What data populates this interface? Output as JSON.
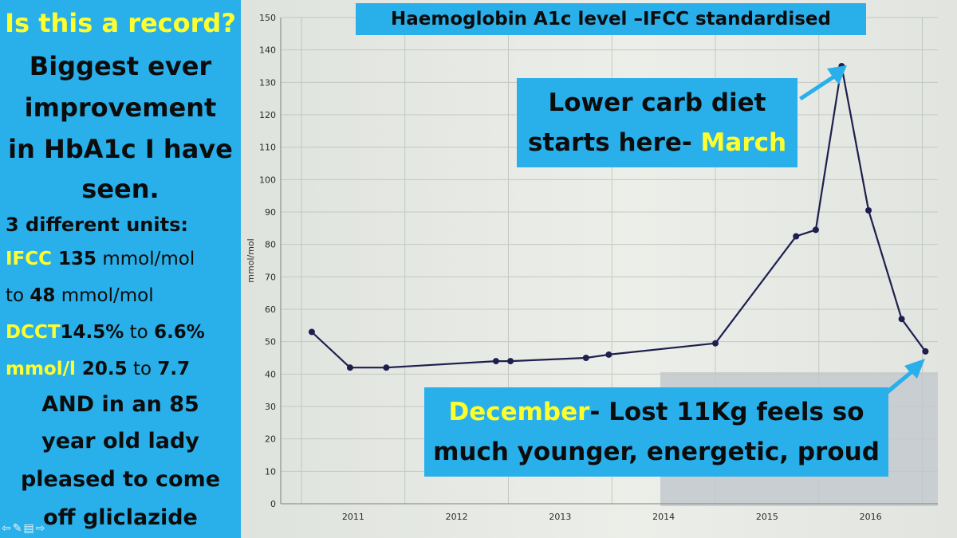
{
  "left_panel": {
    "question": "Is this a record?",
    "headline_lines": [
      "Biggest ever",
      "improvement",
      "in HbA1c I have",
      "seen."
    ],
    "units_heading": "3 different units:",
    "ifcc": {
      "label": "IFCC",
      "from_value": "135",
      "from_unit": " mmol/mol",
      "to_word": "to ",
      "to_value": "48",
      "to_unit": " mmol/mol"
    },
    "dcct": {
      "label": "DCCT",
      "from_value": "14.5%",
      "to_word": " to ",
      "to_value": "6.6%"
    },
    "mmol_l": {
      "label": "mmol/l",
      "from_value": " 20.5",
      "to_word": " to ",
      "to_value": "7.7"
    },
    "closing_lines": [
      "AND in an 85",
      "year old lady",
      "pleased to come",
      "off gliclazide"
    ]
  },
  "callouts": {
    "diet": {
      "line1": "Lower carb diet",
      "line2_prefix": "starts here- ",
      "line2_highlight": "March"
    },
    "december": {
      "highlight": "December",
      "line1_rest": "- Lost 11Kg feels so",
      "line2": "much younger, energetic, proud"
    }
  },
  "nav_icons": [
    "back-arrow-icon",
    "pen-icon",
    "menu-icon",
    "forward-arrow-icon"
  ],
  "colors": {
    "panel_blue": "#29b0ea",
    "highlight_yellow": "#ffff2e",
    "series_line": "#1e1f4e"
  },
  "chart_data": {
    "type": "line",
    "title": "Haemoglobin A1c level –IFCC standardised",
    "xlabel": "",
    "ylabel": "mmol/mol",
    "ylim": [
      0,
      150
    ],
    "xlim": [
      2010.3,
      2016.65
    ],
    "yticks": [
      0,
      10,
      20,
      30,
      40,
      50,
      60,
      70,
      80,
      90,
      100,
      110,
      120,
      130,
      140,
      150
    ],
    "xticks": [
      "2011",
      "2012",
      "2013",
      "2014",
      "2015",
      "2016"
    ],
    "grid": true,
    "series": [
      {
        "x": [
          2010.6,
          2010.97,
          2011.32,
          2012.38,
          2012.52,
          2013.25,
          2013.47,
          2014.5,
          2015.28,
          2015.47,
          2015.72,
          2015.98,
          2016.3,
          2016.53
        ],
        "y": [
          53,
          42,
          42,
          44,
          44,
          45,
          46,
          49.5,
          82.5,
          84.5,
          135,
          90.5,
          57,
          47
        ]
      }
    ]
  }
}
